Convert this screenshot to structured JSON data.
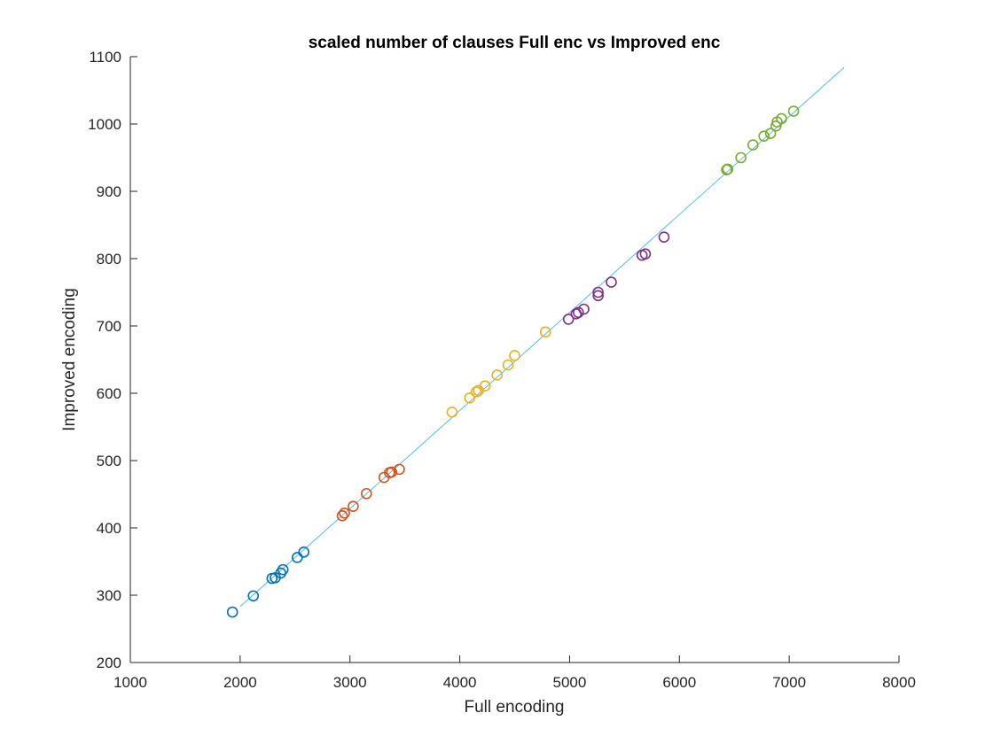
{
  "chart_data": {
    "type": "scatter",
    "title": "scaled number of clauses Full enc vs Improved enc",
    "xlabel": "Full encoding",
    "ylabel": "Improved encoding",
    "xlim": [
      1000,
      8000
    ],
    "ylim": [
      200,
      1100
    ],
    "xticks": [
      1000,
      2000,
      3000,
      4000,
      5000,
      6000,
      7000,
      8000
    ],
    "yticks": [
      200,
      300,
      400,
      500,
      600,
      700,
      800,
      900,
      1000,
      1100
    ],
    "grid": false,
    "legend": "none",
    "marker": "circle-open",
    "series": [
      {
        "color": "#0072BD",
        "points": [
          [
            1930,
            275
          ],
          [
            2120,
            299
          ],
          [
            2290,
            325
          ],
          [
            2320,
            326
          ],
          [
            2370,
            333
          ],
          [
            2390,
            338
          ],
          [
            2520,
            356
          ],
          [
            2580,
            364
          ]
        ]
      },
      {
        "color": "#D95319",
        "points": [
          [
            2930,
            418
          ],
          [
            2950,
            422
          ],
          [
            3030,
            432
          ],
          [
            3150,
            451
          ],
          [
            3310,
            475
          ],
          [
            3360,
            482
          ],
          [
            3380,
            483
          ],
          [
            3450,
            487
          ]
        ]
      },
      {
        "color": "#EDB120",
        "points": [
          [
            3930,
            572
          ],
          [
            4090,
            593
          ],
          [
            4150,
            602
          ],
          [
            4170,
            604
          ],
          [
            4230,
            611
          ],
          [
            4340,
            627
          ],
          [
            4440,
            642
          ],
          [
            4500,
            656
          ],
          [
            4780,
            691
          ]
        ]
      },
      {
        "color": "#7E2F8E",
        "points": [
          [
            4990,
            710
          ],
          [
            5060,
            718
          ],
          [
            5080,
            720
          ],
          [
            5130,
            725
          ],
          [
            5260,
            745
          ],
          [
            5260,
            750
          ],
          [
            5380,
            765
          ],
          [
            5660,
            805
          ],
          [
            5690,
            807
          ],
          [
            5860,
            832
          ]
        ]
      },
      {
        "color": "#77AC30",
        "points": [
          [
            6430,
            932
          ],
          [
            6440,
            933
          ],
          [
            6560,
            950
          ],
          [
            6670,
            969
          ],
          [
            6770,
            982
          ],
          [
            6830,
            986
          ],
          [
            6880,
            997
          ],
          [
            6890,
            1003
          ],
          [
            6930,
            1008
          ],
          [
            7040,
            1019
          ]
        ]
      }
    ],
    "fit_line": {
      "color": "#4DBEEE",
      "points": [
        [
          2000,
          283
        ],
        [
          7500,
          1084
        ]
      ]
    }
  }
}
